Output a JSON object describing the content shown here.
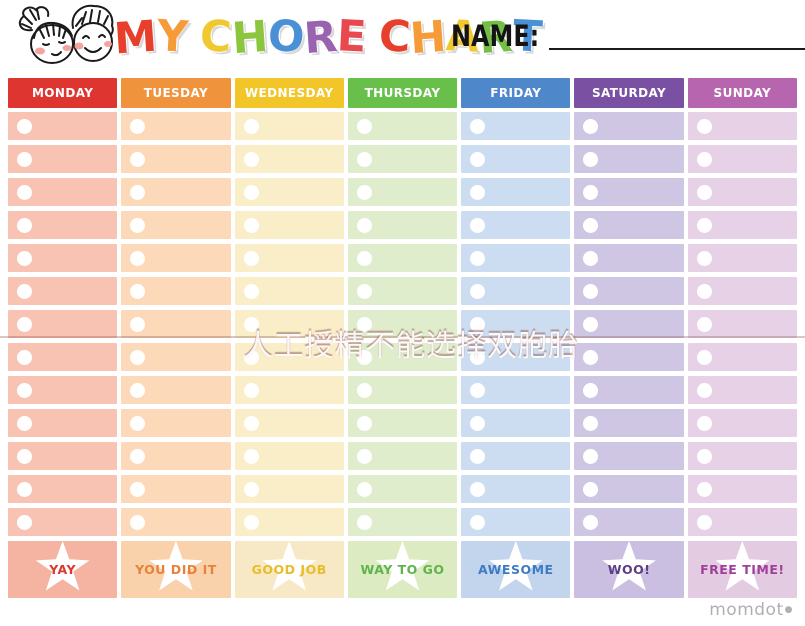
{
  "title": {
    "letters": [
      {
        "ch": "M",
        "color": "#e6402c"
      },
      {
        "ch": "Y",
        "color": "#f59b37"
      },
      {
        "ch": " "
      },
      {
        "ch": "C",
        "color": "#f0c930"
      },
      {
        "ch": "H",
        "color": "#8cc63e"
      },
      {
        "ch": "O",
        "color": "#4a90d5"
      },
      {
        "ch": "R",
        "color": "#9a63b0"
      },
      {
        "ch": "E",
        "color": "#e7494f"
      },
      {
        "ch": " "
      },
      {
        "ch": "C",
        "color": "#e6402c"
      },
      {
        "ch": "H",
        "color": "#f59b37"
      },
      {
        "ch": "A",
        "color": "#f0c930"
      },
      {
        "ch": "R",
        "color": "#72bf44"
      },
      {
        "ch": "T",
        "color": "#4a90d5"
      }
    ],
    "name_label": "NAME:"
  },
  "rows_per_day": 13,
  "days": [
    {
      "label": "MONDAY",
      "header_color": "#df3530",
      "cell_color": "#f8c3b3",
      "footer_color": "#f5b3a1",
      "footer_label": "YAY",
      "footer_text_color": "#d93a30"
    },
    {
      "label": "TUESDAY",
      "header_color": "#f0933d",
      "cell_color": "#fbd9b9",
      "footer_color": "#f9d2ab",
      "footer_label": "YOU DID IT",
      "footer_text_color": "#e8813b"
    },
    {
      "label": "WEDNESDAY",
      "header_color": "#f2c628",
      "cell_color": "#faeec9",
      "footer_color": "#f8e9c6",
      "footer_label": "GOOD JOB",
      "footer_text_color": "#e9bc29"
    },
    {
      "label": "THURSDAY",
      "header_color": "#68c04b",
      "cell_color": "#dfedcc",
      "footer_color": "#dcebc2",
      "footer_label": "WAY TO GO",
      "footer_text_color": "#5eb44a"
    },
    {
      "label": "FRIDAY",
      "header_color": "#4e87ca",
      "cell_color": "#cdddf1",
      "footer_color": "#c3d4ed",
      "footer_label": "AWESOME",
      "footer_text_color": "#3d7cc5"
    },
    {
      "label": "SATURDAY",
      "header_color": "#7a51a2",
      "cell_color": "#cfc6e3",
      "footer_color": "#cabfe0",
      "footer_label": "WOO!",
      "footer_text_color": "#5c3d86"
    },
    {
      "label": "SUNDAY",
      "header_color": "#b765ae",
      "cell_color": "#e7d1e7",
      "footer_color": "#e3cbe1",
      "footer_label": "FREE TIME!",
      "footer_text_color": "#a03f9a"
    }
  ],
  "watermark": {
    "text": "人工授精不能选择双胞胎"
  },
  "brand": {
    "label": "momdot",
    "dot": "●"
  }
}
